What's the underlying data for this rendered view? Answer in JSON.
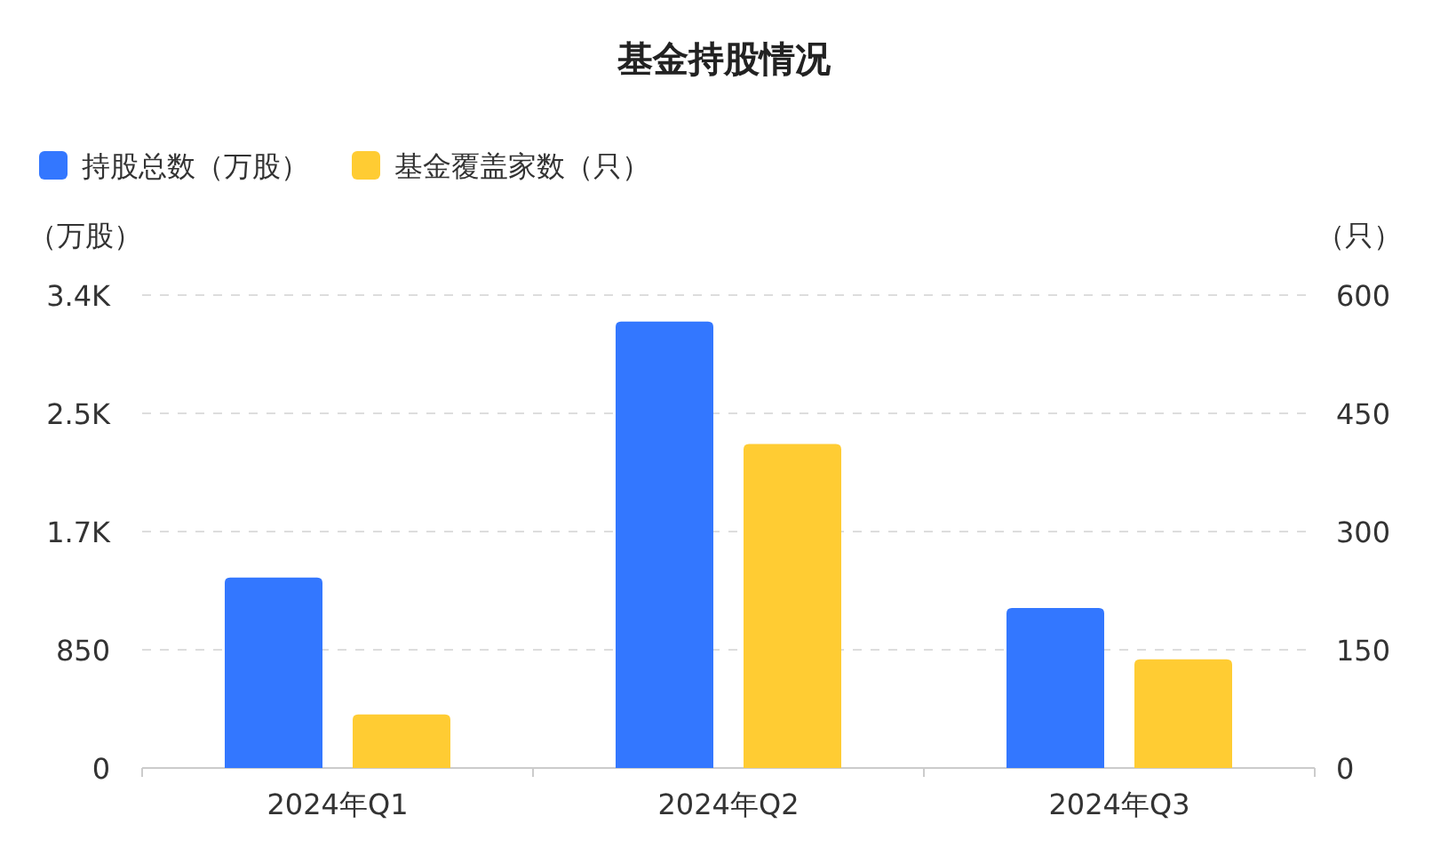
{
  "chart_data": {
    "type": "bar",
    "title": "基金持股情况",
    "ylabel": "（万股）",
    "y2label": "（只）",
    "categories": [
      "2024年Q1",
      "2024年Q2",
      "2024年Q3"
    ],
    "series": [
      {
        "name": "持股总数（万股）",
        "color": "#3377ff",
        "values": [
          1370,
          3210,
          1150
        ]
      },
      {
        "name": "基金覆盖家数（只）",
        "color": "#ffcc33",
        "values": [
          68,
          411,
          138
        ],
        "axis": "y2"
      }
    ],
    "ylim": [
      0,
      3400
    ],
    "yticks": [
      0,
      850,
      {
        "value": 1700,
        "label": "1.7K"
      },
      {
        "value": 2550,
        "label": "2.5K"
      },
      {
        "value": 3400,
        "label": "3.4K"
      }
    ],
    "y2lim": [
      0,
      600
    ],
    "y2ticks": [
      0,
      150,
      300,
      450,
      600
    ],
    "grid": "y",
    "legend": "top left"
  }
}
